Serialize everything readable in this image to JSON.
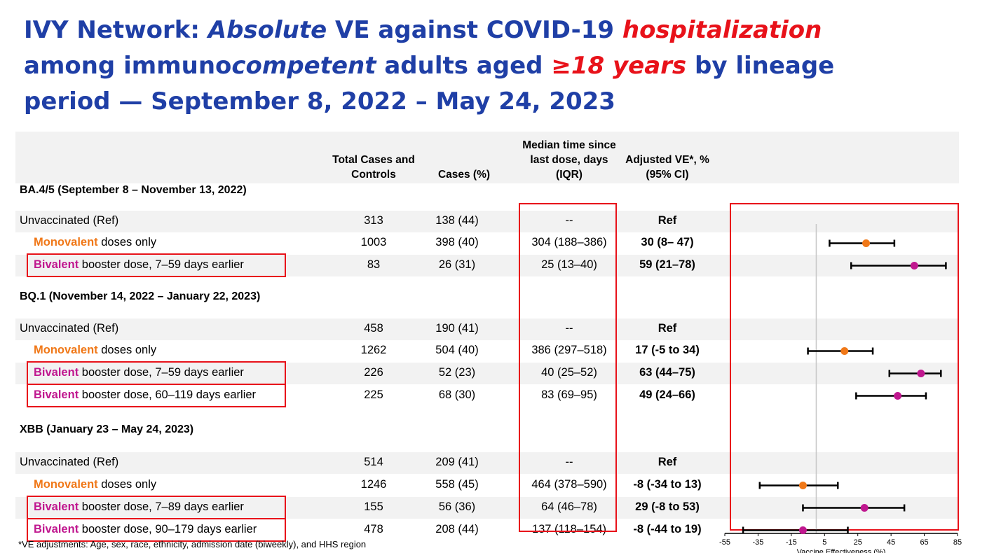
{
  "title": {
    "p1": "IVY Network: ",
    "p2": "Absolute",
    "p3": " VE against COVID-19 ",
    "p4": "hospitalization",
    "p5": "among immuno",
    "p6": "competent",
    "p7": " adults aged ",
    "p8": "≥18 years",
    "p9": " by lineage period — September 8, 2022 – May 24, 2023"
  },
  "headers": {
    "total": "Total Cases and Controls",
    "cases": "Cases (%)",
    "median": "Median time since last dose, days (IQR)",
    "ve": "Adjusted VE*, % (95% CI)"
  },
  "labels": {
    "unvacc": "Unvaccinated (Ref)",
    "mono_word": "Monovalent",
    "mono_rest": " doses only",
    "biv_word": "Bivalent",
    "biv_rest": " booster dose, "
  },
  "footnote": "*VE adjustments: Age, sex, race, ethnicity, admission date (biweekly), and HHS region",
  "colors": {
    "title": "#1f3fa6",
    "highlight": "#e8121a",
    "monovalent": "#f07818",
    "bivalent": "#c0178f"
  },
  "chart_data": {
    "type": "table",
    "xlabel": "Vaccine Effectiveness (%)",
    "xlim": [
      -55,
      85
    ],
    "xticks": [
      "-55",
      "-35",
      "-15",
      "5",
      "25",
      "45",
      "65",
      "85"
    ],
    "reference_line": 0,
    "groups": [
      {
        "period": "BA.4/5 (September 8 – November 13, 2022)",
        "rows": [
          {
            "kind": "unvacc",
            "total": "313",
            "cases": "138 (44)",
            "median": "--",
            "ve": "Ref"
          },
          {
            "kind": "mono",
            "total": "1003",
            "cases": "398 (40)",
            "median": "304 (188–386)",
            "ve": "30 (8– 47)",
            "est": 30,
            "lo": 8,
            "hi": 47
          },
          {
            "kind": "biv",
            "window": "7–59 days earlier",
            "total": "83",
            "cases": "26 (31)",
            "median": "25 (13–40)",
            "ve": "59 (21–78)",
            "est": 59,
            "lo": 21,
            "hi": 78
          }
        ]
      },
      {
        "period": "BQ.1 (November 14, 2022 – January 22, 2023)",
        "rows": [
          {
            "kind": "unvacc",
            "total": "458",
            "cases": "190 (41)",
            "median": "--",
            "ve": "Ref"
          },
          {
            "kind": "mono",
            "total": "1262",
            "cases": "504 (40)",
            "median": "386 (297–518)",
            "ve": "17 (-5 to 34)",
            "est": 17,
            "lo": -5,
            "hi": 34
          },
          {
            "kind": "biv",
            "window": "7–59 days earlier",
            "total": "226",
            "cases": "52 (23)",
            "median": "40 (25–52)",
            "ve": "63 (44–75)",
            "est": 63,
            "lo": 44,
            "hi": 75
          },
          {
            "kind": "biv",
            "window": "60–119 days earlier",
            "total": "225",
            "cases": "68 (30)",
            "median": "83 (69–95)",
            "ve": "49 (24–66)",
            "est": 49,
            "lo": 24,
            "hi": 66
          }
        ]
      },
      {
        "period": "XBB (January 23 – May 24, 2023)",
        "rows": [
          {
            "kind": "unvacc",
            "total": "514",
            "cases": "209 (41)",
            "median": "--",
            "ve": "Ref"
          },
          {
            "kind": "mono",
            "total": "1246",
            "cases": "558 (45)",
            "median": "464 (378–590)",
            "ve": "-8 (-34 to 13)",
            "est": -8,
            "lo": -34,
            "hi": 13
          },
          {
            "kind": "biv",
            "window": "7–89 days earlier",
            "total": "155",
            "cases": "56 (36)",
            "median": "64 (46–78)",
            "ve": "29 (-8 to 53)",
            "est": 29,
            "lo": -8,
            "hi": 53
          },
          {
            "kind": "biv",
            "window": "90–179 days earlier",
            "total": "478",
            "cases": "208 (44)",
            "median": "137 (118–154)",
            "ve": "-8 (-44 to 19)",
            "est": -8,
            "lo": -44,
            "hi": 19
          }
        ]
      }
    ]
  }
}
